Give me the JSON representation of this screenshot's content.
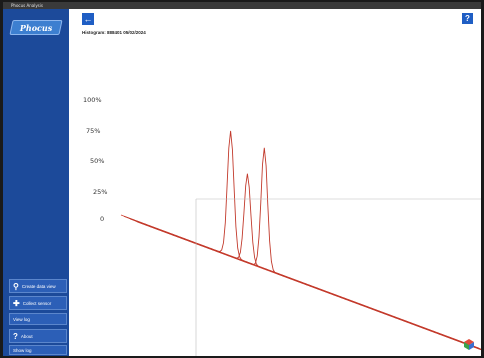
{
  "window": {
    "title": "Phocus Analysis"
  },
  "sidebar": {
    "logo": "Phocus",
    "buttons": [
      {
        "label": "Create data view",
        "icon": "pin-icon"
      },
      {
        "label": "Collect sensor",
        "icon": "plus-icon"
      },
      {
        "label": "View log",
        "icon": ""
      },
      {
        "label": "About",
        "icon": "question-icon"
      },
      {
        "label": "Show log",
        "icon": ""
      }
    ]
  },
  "header": {
    "title": "Histogram: 888401 05/02/2024",
    "help": "?"
  },
  "chart_data": {
    "type": "line",
    "view": "3d-waterfall",
    "y_ticks": [
      "100%",
      "75%",
      "50%",
      "25%",
      "0"
    ],
    "ylim": [
      0,
      100
    ],
    "series": [
      {
        "peak_value": 100
      },
      {
        "peak_value": 71
      },
      {
        "peak_value": 97
      }
    ],
    "grid": true,
    "line_color": "#c23a2c",
    "grid_color": "#d24a3a"
  }
}
